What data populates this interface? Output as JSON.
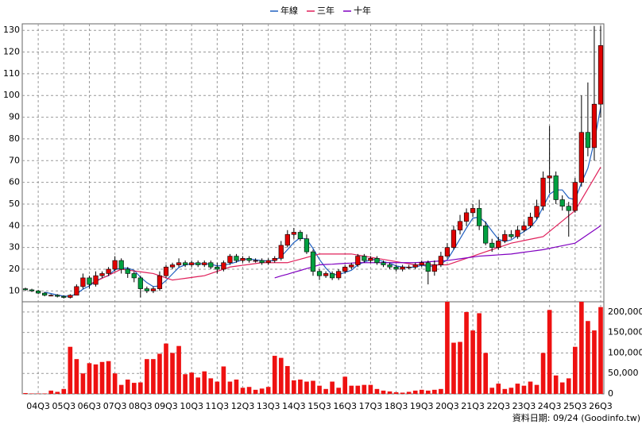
{
  "chart_data": {
    "type": "candlestick",
    "legend": [
      {
        "name": "年線",
        "color": "#2060c0"
      },
      {
        "name": "三年",
        "color": "#e0205a"
      },
      {
        "name": "十年",
        "color": "#8000c0"
      }
    ],
    "footer": "資料日期: 09/24 (Goodinfo.tw)",
    "up_color": "#e00000",
    "down_color": "#00a040",
    "volume_color": "#ee1111",
    "grid": true,
    "categories": [
      null,
      null,
      "04Q3",
      null,
      null,
      null,
      "05Q3",
      null,
      null,
      null,
      "06Q3",
      null,
      null,
      null,
      "07Q3",
      null,
      null,
      null,
      "08Q3",
      null,
      null,
      null,
      "09Q3",
      null,
      null,
      null,
      "10Q3",
      null,
      null,
      null,
      "11Q3",
      null,
      null,
      null,
      "12Q3",
      null,
      null,
      null,
      "13Q3",
      null,
      null,
      null,
      "14Q3",
      null,
      null,
      null,
      "15Q3",
      null,
      null,
      null,
      "16Q3",
      null,
      null,
      null,
      "17Q3",
      null,
      null,
      null,
      "18Q3",
      null,
      null,
      null,
      "19Q3",
      null,
      null,
      null,
      "20Q3",
      null,
      null,
      null,
      "21Q3",
      null,
      null,
      null,
      "22Q3",
      null,
      null,
      null,
      "23Q3",
      null,
      null,
      null,
      "24Q3",
      null,
      null,
      null,
      "25Q3",
      null,
      null,
      null,
      "26Q3"
    ],
    "open": [
      11,
      10.5,
      10,
      9,
      8,
      8,
      7.5,
      7,
      8,
      12,
      16,
      13,
      17,
      18,
      20,
      24,
      20,
      18,
      16,
      11,
      10,
      11,
      17,
      21,
      22,
      23,
      22,
      23,
      22,
      23,
      21,
      20,
      23,
      26,
      24,
      25,
      24,
      24,
      23,
      24,
      25,
      31,
      36,
      37,
      34,
      28,
      19,
      17,
      18,
      16,
      19,
      21,
      22,
      26,
      24,
      25,
      23,
      22,
      21,
      20,
      21,
      21,
      22,
      23,
      19,
      22,
      26,
      30,
      38,
      42,
      46,
      48,
      40,
      32,
      30,
      33,
      36,
      35,
      38,
      40,
      44,
      49,
      62,
      63,
      52,
      49,
      47,
      60,
      83,
      76,
      96
    ],
    "high": [
      11.5,
      11,
      10.5,
      9.5,
      8.5,
      8.5,
      8,
      8.5,
      13,
      18,
      17,
      19,
      19,
      21,
      26,
      25,
      21,
      19,
      17,
      12,
      12,
      19,
      22,
      23,
      25,
      24,
      24,
      24,
      24,
      24,
      23,
      24,
      27,
      27,
      26,
      26,
      25,
      25,
      25,
      26,
      33,
      38,
      39,
      38,
      36,
      29,
      20,
      19,
      19,
      20,
      22,
      23,
      27,
      27,
      26,
      26,
      24,
      23,
      22,
      22,
      22,
      23,
      24,
      24,
      24,
      28,
      32,
      40,
      45,
      48,
      50,
      52,
      42,
      34,
      35,
      38,
      38,
      40,
      42,
      46,
      52,
      65,
      86,
      65,
      54,
      51,
      62,
      100,
      106,
      132,
      132
    ],
    "low": [
      10,
      9.5,
      8.5,
      7.5,
      7.5,
      7,
      6.5,
      6.5,
      8,
      11,
      11,
      12,
      16,
      17,
      19,
      18,
      16,
      14,
      7,
      9,
      9,
      10,
      16,
      20,
      21,
      21,
      21,
      21,
      21,
      20,
      18,
      19,
      22,
      23,
      23,
      23,
      23,
      22,
      22,
      23,
      24,
      30,
      34,
      33,
      27,
      17,
      15,
      16,
      15,
      15,
      18,
      20,
      21,
      23,
      23,
      22,
      21,
      20,
      19,
      19,
      20,
      20,
      21,
      13,
      17,
      21,
      25,
      29,
      36,
      40,
      44,
      38,
      31,
      28,
      29,
      32,
      34,
      34,
      37,
      39,
      43,
      47,
      55,
      50,
      47,
      35,
      46,
      58,
      72,
      70,
      90
    ],
    "close": [
      10.5,
      10,
      9,
      8,
      8,
      7.5,
      7,
      8,
      12,
      16,
      13,
      17,
      18,
      20,
      24,
      20,
      18,
      16,
      11,
      10,
      11,
      17,
      21,
      22,
      23,
      22,
      23,
      22,
      23,
      21,
      20,
      23,
      26,
      24,
      25,
      24,
      24,
      23,
      24,
      25,
      31,
      36,
      37,
      34,
      28,
      19,
      17,
      18,
      16,
      19,
      21,
      22,
      26,
      24,
      25,
      23,
      22,
      21,
      20,
      21,
      21,
      22,
      23,
      19,
      22,
      26,
      30,
      38,
      42,
      46,
      48,
      40,
      32,
      30,
      33,
      36,
      35,
      38,
      40,
      44,
      49,
      62,
      63,
      52,
      49,
      47,
      60,
      83,
      76,
      96,
      123
    ],
    "series": [
      {
        "name": "年線",
        "color": "#2060c0",
        "values": [
          null,
          null,
          null,
          9.4,
          8.8,
          8.1,
          7.6,
          7.6,
          8.6,
          10.8,
          12.3,
          14.5,
          16,
          17,
          19.8,
          20.5,
          20.5,
          19.5,
          16.3,
          13.8,
          12,
          12.3,
          14.8,
          17.8,
          20.8,
          22,
          22.5,
          22.5,
          22.5,
          22.3,
          21.5,
          21.8,
          22.5,
          23.3,
          24.5,
          24.8,
          24.3,
          24,
          23.8,
          24,
          25.8,
          29,
          32.3,
          34.5,
          33.8,
          29.5,
          24.5,
          20.5,
          17.5,
          17.5,
          18.5,
          19.5,
          22,
          23.3,
          24.3,
          24.5,
          23.5,
          22.8,
          21.5,
          21,
          20.8,
          21,
          21.8,
          21.3,
          21.5,
          22.5,
          24.3,
          29,
          34,
          39,
          43.5,
          44,
          41.5,
          37.5,
          33.8,
          32.8,
          33.5,
          35.5,
          37.3,
          39.3,
          42.8,
          48.8,
          54.5,
          56.5,
          56.5,
          52.8,
          52,
          59.8,
          66.5,
          78.8,
          94.5
        ]
      },
      {
        "name": "三年",
        "color": "#e0205a",
        "values": [
          null,
          null,
          null,
          null,
          null,
          null,
          null,
          null,
          null,
          null,
          13,
          14.4,
          15.8,
          17.2,
          18.6,
          20,
          19.6,
          19.2,
          18.8,
          18.4,
          18,
          17,
          16,
          15,
          15.4,
          15.8,
          16.2,
          16.6,
          17,
          18,
          19,
          20,
          21,
          21.4,
          21.8,
          22.2,
          22.6,
          23,
          23,
          23,
          23,
          23,
          23.8,
          24.6,
          25.4,
          26.2,
          27,
          27,
          27,
          27,
          27,
          27,
          26.5,
          26,
          25.5,
          25,
          24.5,
          24,
          23.5,
          23,
          22.5,
          22,
          22,
          22,
          22,
          22,
          22,
          23,
          24,
          25,
          26,
          27,
          28,
          29,
          30,
          31,
          32,
          32.6,
          33.2,
          33.8,
          34.4,
          35,
          37.4,
          39.8,
          42.2,
          44.6,
          47,
          52,
          57,
          62,
          67
        ]
      },
      {
        "name": "十年",
        "color": "#8000c0",
        "values": [
          null,
          null,
          null,
          null,
          null,
          null,
          null,
          null,
          null,
          null,
          null,
          null,
          null,
          null,
          null,
          null,
          null,
          null,
          null,
          null,
          null,
          null,
          null,
          null,
          null,
          null,
          null,
          null,
          null,
          null,
          null,
          null,
          null,
          null,
          null,
          null,
          null,
          null,
          null,
          16,
          16.9,
          17.7,
          18.6,
          19.4,
          20.3,
          21.1,
          22,
          22.2,
          22.3,
          22.5,
          22.7,
          22.8,
          23,
          23,
          23,
          23,
          23,
          23,
          23,
          23,
          23,
          23,
          23.2,
          23.4,
          23.6,
          23.8,
          24,
          24.4,
          24.8,
          25.2,
          25.6,
          26,
          26.2,
          26.4,
          26.6,
          26.8,
          27,
          27.4,
          27.8,
          28.2,
          28.6,
          29,
          29.6,
          30.2,
          30.8,
          31.4,
          32,
          34,
          36,
          38,
          40
        ]
      }
    ],
    "volume": [
      2000,
      1000,
      1000,
      1000,
      8000,
      5000,
      12000,
      115000,
      85000,
      50000,
      75000,
      72000,
      78000,
      80000,
      50000,
      22000,
      35000,
      27000,
      28000,
      85000,
      85000,
      98000,
      123000,
      100000,
      117000,
      48000,
      52000,
      40000,
      55000,
      38000,
      30000,
      67000,
      30000,
      35000,
      15000,
      17000,
      10000,
      13000,
      17000,
      93000,
      88000,
      68000,
      33000,
      35000,
      30000,
      32000,
      20000,
      12000,
      30000,
      15000,
      42000,
      20000,
      20000,
      22000,
      22000,
      12000,
      8000,
      6000,
      4000,
      3000,
      5000,
      8000,
      10000,
      8000,
      10000,
      12000,
      225000,
      125000,
      127000,
      200000,
      155000,
      197000,
      100000,
      15000,
      25000,
      12000,
      15000,
      25000,
      20000,
      30000,
      22000,
      100000,
      205000,
      45000,
      28000,
      38000,
      115000,
      225000,
      178000,
      155000,
      212000
    ],
    "ylim": [
      5,
      133
    ],
    "yticks": [
      10,
      20,
      30,
      40,
      50,
      60,
      70,
      80,
      90,
      100,
      110,
      120,
      130
    ],
    "y2lim": [
      0,
      225000
    ],
    "y2ticks": [
      0,
      {
        "value": 50000,
        "label": "50,000"
      },
      {
        "value": 100000,
        "label": "100,000"
      },
      {
        "value": 150000,
        "label": "150,000"
      },
      {
        "value": 200000,
        "label": "200,000"
      }
    ]
  }
}
